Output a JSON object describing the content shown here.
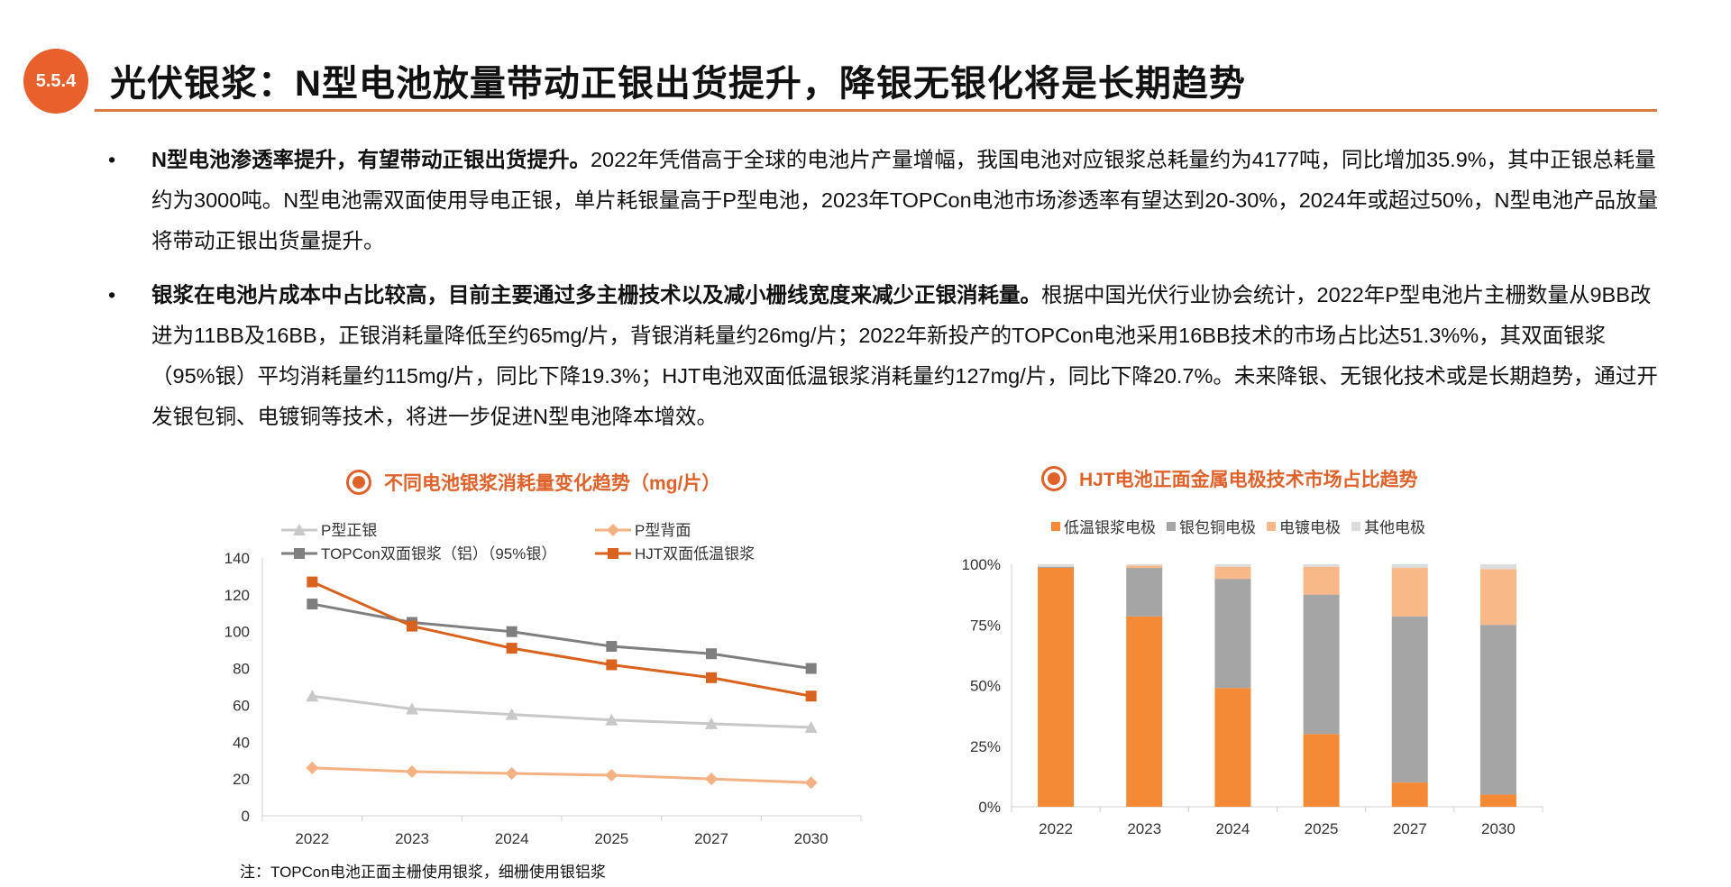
{
  "header": {
    "section_number": "5.5.4",
    "title": "光伏银浆：N型电池放量带动正银出货提升，降银无银化将是长期趋势"
  },
  "bullets": [
    {
      "lead": "N型电池渗透率提升，有望带动正银出货提升。",
      "body": "2022年凭借高于全球的电池片产量增幅，我国电池对应银浆总耗量约为4177吨，同比增加35.9%，其中正银总耗量约为3000吨。N型电池需双面使用导电正银，单片耗银量高于P型电池，2023年TOPCon电池市场渗透率有望达到20-30%，2024年或超过50%，N型电池产品放量将带动正银出货量提升。"
    },
    {
      "lead": "银浆在电池片成本中占比较高，目前主要通过多主栅技术以及减小栅线宽度来减少正银消耗量。",
      "body": "根据中国光伏行业协会统计，2022年P型电池片主栅数量从9BB改进为11BB及16BB，正银消耗量降低至约65mg/片，背银消耗量约26mg/片；2022年新投产的TOPCon电池采用16BB技术的市场占比达51.3%%，其双面银浆（95%银）平均消耗量约115mg/片，同比下降19.3%；HJT电池双面低温银浆消耗量约127mg/片，同比下降20.7%。未来降银、无银化技术或是长期趋势，通过开发银包铜、电镀铜等技术，将进一步促进N型电池降本增效。"
    }
  ],
  "note": "注：TOPCon电池正面主栅使用银浆，细栅使用银铝浆",
  "chart_data": [
    {
      "type": "line",
      "title": "不同电池银浆消耗量变化趋势（mg/片）",
      "categories": [
        "2022",
        "2023",
        "2024",
        "2025",
        "2027",
        "2030"
      ],
      "ylim": [
        0,
        140
      ],
      "yticks": [
        "0",
        "20",
        "40",
        "60",
        "80",
        "100",
        "120",
        "140"
      ],
      "grid": false,
      "legend": "top",
      "series": [
        {
          "name": "P型正银",
          "values": [
            65,
            58,
            55,
            52,
            50,
            48
          ],
          "color": "#c8c8c8",
          "marker": "triangle"
        },
        {
          "name": "P型背面",
          "values": [
            26,
            24,
            23,
            22,
            20,
            18
          ],
          "color": "#f4b183",
          "marker": "diamond"
        },
        {
          "name": "TOPCon双面银浆（铝）（95%银）",
          "values": [
            115,
            105,
            100,
            92,
            88,
            80
          ],
          "color": "#7f7f7f",
          "marker": "square"
        },
        {
          "name": "HJT双面低温银浆",
          "values": [
            127,
            103,
            91,
            82,
            75,
            65
          ],
          "color": "#d9631e",
          "marker": "square"
        }
      ]
    },
    {
      "type": "bar",
      "stacked": true,
      "title": "HJT电池正面金属电极技术市场占比趋势",
      "categories": [
        "2022",
        "2023",
        "2024",
        "2025",
        "2027",
        "2030"
      ],
      "ylim": [
        0,
        100
      ],
      "yticks": [
        "0%",
        "25%",
        "50%",
        "75%",
        "100%"
      ],
      "grid": false,
      "legend": "top",
      "series": [
        {
          "name": "低温银浆电极",
          "values": [
            98.5,
            78.5,
            49,
            30,
            10,
            5
          ],
          "color": "#f58a36"
        },
        {
          "name": "银包铜电极",
          "values": [
            0.5,
            20,
            45,
            57.5,
            68.5,
            70
          ],
          "color": "#a5a5a5"
        },
        {
          "name": "电镀电极",
          "values": [
            0,
            1,
            5,
            11.5,
            20,
            23
          ],
          "color": "#f8b887"
        },
        {
          "name": "其他电极",
          "values": [
            1,
            0.5,
            1,
            1,
            1.5,
            2
          ],
          "color": "#dcdcdc"
        }
      ]
    }
  ]
}
